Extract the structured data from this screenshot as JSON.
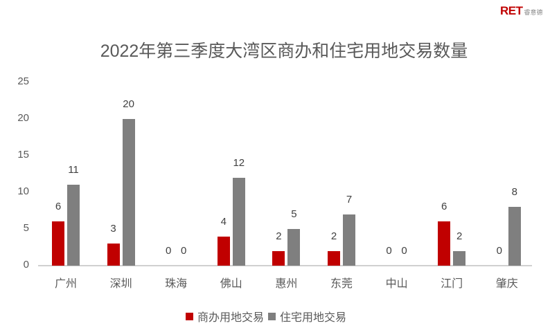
{
  "logo": {
    "main": "RET",
    "sub": "睿意德"
  },
  "chart_data": {
    "type": "bar",
    "title": "2022年第三季度大湾区商办和住宅用地交易数量",
    "xlabel": "",
    "ylabel": "",
    "ylim": [
      0,
      25
    ],
    "yticks": [
      "0",
      "5",
      "10",
      "15",
      "20",
      "25"
    ],
    "grid": false,
    "legend_position": "bottom",
    "categories": [
      "广州",
      "深圳",
      "珠海",
      "佛山",
      "惠州",
      "东莞",
      "中山",
      "江门",
      "肇庆"
    ],
    "series": [
      {
        "name": "商办用地交易",
        "color": "#c00000",
        "values": [
          6,
          3,
          0,
          4,
          2,
          2,
          0,
          6,
          0
        ]
      },
      {
        "name": "住宅用地交易",
        "color": "#7f7f7f",
        "values": [
          11,
          20,
          0,
          12,
          5,
          7,
          0,
          2,
          8
        ]
      }
    ]
  }
}
